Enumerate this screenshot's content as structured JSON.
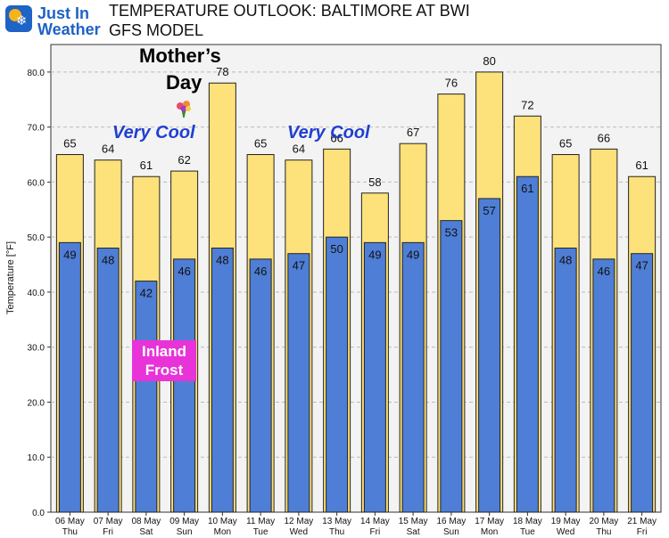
{
  "logo": {
    "line1": "Just In",
    "line2": "Weather"
  },
  "header": {
    "title_line1": "TEMPERATURE OUTLOOK: BALTIMORE AT BWI",
    "title_line2": "GFS MODEL"
  },
  "annotations": {
    "mothers_day_line1": "Mother’s",
    "mothers_day_line2": "Day",
    "very_cool_1": "Very Cool",
    "very_cool_2": "Very Cool",
    "inland_frost_line1": "Inland",
    "inland_frost_line2": "Frost"
  },
  "colors": {
    "high": "#fde17a",
    "low": "#4f7ed6",
    "outline": "#222222",
    "plot_bg": "#f3f3f3",
    "frost": "#e833d8",
    "very_cool": "#1f3fd0"
  },
  "chart_data": {
    "type": "bar",
    "ylabel": "Temperature [°F]",
    "ylim": [
      0,
      85
    ],
    "yticks": [
      "0.0",
      "10.0",
      "20.0",
      "30.0",
      "40.0",
      "50.0",
      "60.0",
      "70.0",
      "80.0"
    ],
    "ytick_values": [
      0,
      10,
      20,
      30,
      40,
      50,
      60,
      70,
      80
    ],
    "grid": "horizontal dashed",
    "categories": [
      {
        "date": "06 May",
        "day": "Thu"
      },
      {
        "date": "07 May",
        "day": "Fri"
      },
      {
        "date": "08 May",
        "day": "Sat"
      },
      {
        "date": "09 May",
        "day": "Sun"
      },
      {
        "date": "10 May",
        "day": "Mon"
      },
      {
        "date": "11 May",
        "day": "Tue"
      },
      {
        "date": "12 May",
        "day": "Wed"
      },
      {
        "date": "13 May",
        "day": "Thu"
      },
      {
        "date": "14 May",
        "day": "Fri"
      },
      {
        "date": "15 May",
        "day": "Sat"
      },
      {
        "date": "16 May",
        "day": "Sun"
      },
      {
        "date": "17 May",
        "day": "Mon"
      },
      {
        "date": "18 May",
        "day": "Tue"
      },
      {
        "date": "19 May",
        "day": "Wed"
      },
      {
        "date": "20 May",
        "day": "Thu"
      },
      {
        "date": "21 May",
        "day": "Fri"
      }
    ],
    "series": [
      {
        "values": [
          65,
          64,
          61,
          62,
          78,
          65,
          64,
          66,
          58,
          67,
          76,
          80,
          72,
          65,
          66,
          61
        ]
      },
      {
        "values": [
          49,
          48,
          42,
          46,
          48,
          46,
          47,
          50,
          49,
          49,
          53,
          57,
          61,
          48,
          46,
          47
        ]
      }
    ]
  }
}
